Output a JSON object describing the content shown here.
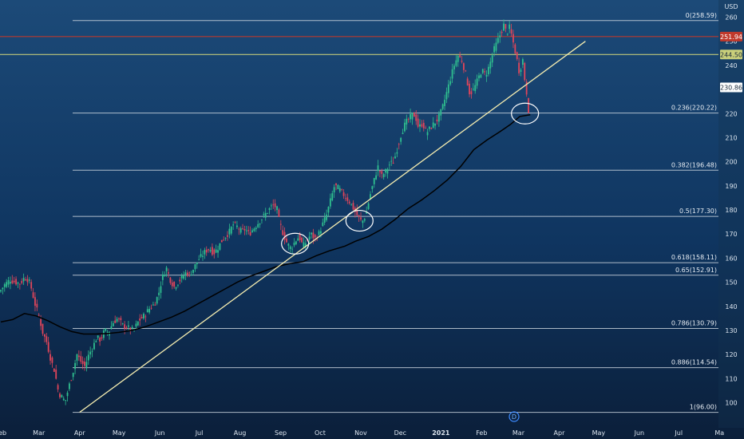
{
  "currency": "USD",
  "chart_data": {
    "type": "candlestick",
    "y_axis": {
      "unit": "USD",
      "range": [
        95,
        262
      ],
      "ticks": [
        100,
        110,
        120,
        130,
        140,
        150,
        160,
        170,
        180,
        190,
        200,
        210,
        220,
        230,
        240,
        250,
        260
      ]
    },
    "x_axis": {
      "labels": [
        "Feb",
        "Mar",
        "Apr",
        "May",
        "Jun",
        "Jul",
        "Aug",
        "Sep",
        "Oct",
        "Nov",
        "Dec",
        "2021",
        "Feb",
        "Mar",
        "Apr",
        "May",
        "Jun",
        "Jul",
        "Ma"
      ],
      "label_index": [
        0,
        29,
        60,
        90,
        121,
        151,
        182,
        213,
        243,
        274,
        304,
        335,
        366,
        394,
        425,
        455,
        486,
        516,
        547
      ]
    },
    "fib_levels": [
      {
        "ratio": "0",
        "price": 258.59,
        "label": "0(258.59)"
      },
      {
        "ratio": "0.236",
        "price": 220.22,
        "label": "0.236(220.22)"
      },
      {
        "ratio": "0.382",
        "price": 196.48,
        "label": "0.382(196.48)"
      },
      {
        "ratio": "0.5",
        "price": 177.3,
        "label": "0.5(177.30)"
      },
      {
        "ratio": "0.618",
        "price": 158.11,
        "label": "0.618(158.11)"
      },
      {
        "ratio": "0.65",
        "price": 152.91,
        "label": "0.65(152.91)"
      },
      {
        "ratio": "0.786",
        "price": 130.79,
        "label": "0.786(130.79)"
      },
      {
        "ratio": "0.886",
        "price": 114.54,
        "label": "0.886(114.54)"
      },
      {
        "ratio": "1",
        "price": 96.0,
        "label": "1(96.00)"
      }
    ],
    "horizontal_lines": [
      {
        "price": 251.94,
        "label": "251.94",
        "color": "#c0392b"
      },
      {
        "price": 244.5,
        "label": "244.50",
        "color": "#c9cf7a"
      },
      {
        "price": 230.86,
        "label": "230.86",
        "color": "#ffffff"
      }
    ],
    "trendline": {
      "from": {
        "day": 60,
        "price": 96.0
      },
      "to": {
        "day": 445,
        "price": 250.0
      },
      "color": "#f5edb0"
    },
    "moving_average": [
      [
        0,
        133.5
      ],
      [
        9,
        134.5
      ],
      [
        18,
        137
      ],
      [
        27,
        136
      ],
      [
        36,
        134
      ],
      [
        45,
        131.5
      ],
      [
        54,
        129.5
      ],
      [
        63,
        128.5
      ],
      [
        72,
        128.5
      ],
      [
        81,
        128.7
      ],
      [
        90,
        129.2
      ],
      [
        100,
        130
      ],
      [
        110,
        131.5
      ],
      [
        120,
        133.5
      ],
      [
        130,
        135.5
      ],
      [
        140,
        138
      ],
      [
        150,
        141
      ],
      [
        160,
        144
      ],
      [
        170,
        147
      ],
      [
        180,
        150
      ],
      [
        190,
        152.5
      ],
      [
        200,
        154.5
      ],
      [
        210,
        156.5
      ],
      [
        220,
        157.7
      ],
      [
        230,
        158.5
      ],
      [
        240,
        161
      ],
      [
        250,
        163
      ],
      [
        262,
        165
      ],
      [
        270,
        167
      ],
      [
        280,
        169
      ],
      [
        290,
        172
      ],
      [
        300,
        176
      ],
      [
        310,
        180.5
      ],
      [
        320,
        184
      ],
      [
        330,
        188
      ],
      [
        340,
        192.5
      ],
      [
        350,
        198
      ],
      [
        360,
        205
      ],
      [
        370,
        209
      ],
      [
        380,
        212.5
      ],
      [
        388,
        215.5
      ],
      [
        395,
        218.8
      ],
      [
        403,
        219.5
      ]
    ],
    "prices": [
      [
        0,
        146
      ],
      [
        4,
        149
      ],
      [
        8,
        151
      ],
      [
        12,
        150
      ],
      [
        16,
        149.5
      ],
      [
        19,
        152
      ],
      [
        22,
        151
      ],
      [
        24,
        148
      ],
      [
        27,
        141
      ],
      [
        30,
        136
      ],
      [
        33,
        129
      ],
      [
        36,
        125
      ],
      [
        39,
        118
      ],
      [
        42,
        113
      ],
      [
        45,
        104
      ],
      [
        48,
        102
      ],
      [
        50,
        100.5
      ],
      [
        53,
        107
      ],
      [
        56,
        113
      ],
      [
        59,
        120
      ],
      [
        62,
        117
      ],
      [
        65,
        115
      ],
      [
        68,
        120
      ],
      [
        71,
        123
      ],
      [
        74,
        127
      ],
      [
        77,
        126
      ],
      [
        80,
        130
      ],
      [
        83,
        129
      ],
      [
        86,
        133
      ],
      [
        90,
        135
      ],
      [
        94,
        132
      ],
      [
        98,
        131
      ],
      [
        102,
        130
      ],
      [
        106,
        134
      ],
      [
        110,
        136
      ],
      [
        114,
        139
      ],
      [
        118,
        141
      ],
      [
        121,
        145
      ],
      [
        124,
        152
      ],
      [
        127,
        156
      ],
      [
        130,
        151
      ],
      [
        133,
        148
      ],
      [
        136,
        150
      ],
      [
        139,
        152
      ],
      [
        142,
        154
      ],
      [
        145,
        153
      ],
      [
        148,
        156
      ],
      [
        151,
        159
      ],
      [
        154,
        161
      ],
      [
        157,
        163
      ],
      [
        160,
        164
      ],
      [
        163,
        162
      ],
      [
        166,
        164
      ],
      [
        169,
        167
      ],
      [
        172,
        169
      ],
      [
        175,
        171
      ],
      [
        178,
        174
      ],
      [
        181,
        173
      ],
      [
        184,
        171
      ],
      [
        187,
        172
      ],
      [
        190,
        170
      ],
      [
        193,
        172
      ],
      [
        196,
        174
      ],
      [
        199,
        176
      ],
      [
        202,
        178
      ],
      [
        205,
        180
      ],
      [
        208,
        182
      ],
      [
        211,
        181
      ],
      [
        213,
        175
      ],
      [
        216,
        170
      ],
      [
        219,
        166
      ],
      [
        222,
        164
      ],
      [
        225,
        167
      ],
      [
        228,
        169
      ],
      [
        231,
        165
      ],
      [
        234,
        167
      ],
      [
        237,
        170
      ],
      [
        240,
        168
      ],
      [
        243,
        170
      ],
      [
        246,
        174
      ],
      [
        249,
        178
      ],
      [
        252,
        184
      ],
      [
        255,
        190
      ],
      [
        258,
        189
      ],
      [
        261,
        187
      ],
      [
        264,
        185
      ],
      [
        267,
        183
      ],
      [
        270,
        180
      ],
      [
        273,
        177
      ],
      [
        276,
        175
      ],
      [
        279,
        178
      ],
      [
        282,
        186
      ],
      [
        285,
        192
      ],
      [
        288,
        198
      ],
      [
        291,
        194
      ],
      [
        294,
        196
      ],
      [
        297,
        199
      ],
      [
        300,
        200
      ],
      [
        303,
        206
      ],
      [
        306,
        212
      ],
      [
        309,
        216
      ],
      [
        312,
        218
      ],
      [
        315,
        220
      ],
      [
        317,
        218
      ],
      [
        319,
        214
      ],
      [
        322,
        216
      ],
      [
        325,
        212
      ],
      [
        328,
        214
      ],
      [
        331,
        216
      ],
      [
        334,
        218
      ],
      [
        337,
        222
      ],
      [
        340,
        228
      ],
      [
        343,
        234
      ],
      [
        346,
        240
      ],
      [
        349,
        244
      ],
      [
        352,
        242
      ],
      [
        355,
        236
      ],
      [
        358,
        228
      ],
      [
        361,
        230
      ],
      [
        364,
        234
      ],
      [
        367,
        238
      ],
      [
        370,
        236
      ],
      [
        373,
        240
      ],
      [
        376,
        246
      ],
      [
        379,
        250
      ],
      [
        382,
        254
      ],
      [
        384,
        257
      ],
      [
        386,
        253
      ],
      [
        388,
        256
      ],
      [
        390,
        252
      ],
      [
        392,
        247
      ],
      [
        394,
        242
      ],
      [
        396,
        236
      ],
      [
        398,
        244
      ],
      [
        400,
        233
      ],
      [
        402,
        226
      ],
      [
        403,
        219
      ]
    ],
    "annotations": [
      {
        "type": "ellipse",
        "day": 224,
        "price": 166
      },
      {
        "type": "ellipse",
        "day": 273,
        "price": 175.5
      },
      {
        "type": "ellipse",
        "day": 399,
        "price": 220
      }
    ],
    "dividend_marker": "D"
  }
}
